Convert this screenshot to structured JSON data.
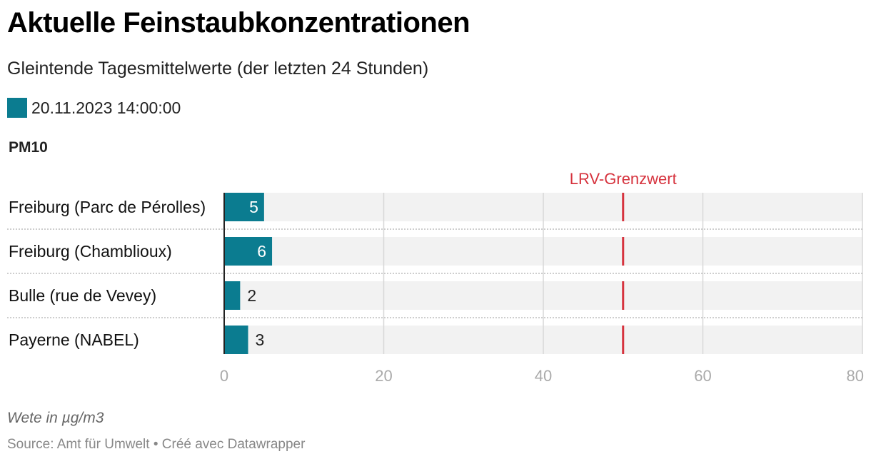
{
  "header": {
    "title": "Aktuelle Feinstaubkonzentrationen",
    "subtitle": "Gleintende Tagesmittelwerte (der letzten 24 Stunden)"
  },
  "legend": {
    "label": "20.11.2023 14:00:00",
    "color": "#0b7c90"
  },
  "panel": {
    "title": "PM10"
  },
  "footer": {
    "note": "Wete in µg/m3",
    "source": "Source: Amt für Umwelt • Créé avec Datawrapper"
  },
  "chart_data": {
    "type": "bar",
    "orientation": "horizontal",
    "title": "PM10",
    "categories": [
      "Freiburg (Parc de Pérolles)",
      "Freiburg (Chamblioux)",
      "Bulle (rue de Vevey)",
      "Payerne (NABEL)"
    ],
    "series": [
      {
        "name": "20.11.2023 14:00:00",
        "values": [
          5,
          6,
          2,
          3
        ],
        "color": "#0b7c90"
      }
    ],
    "xlim": [
      0,
      80
    ],
    "xticks": [
      0,
      20,
      40,
      60,
      80
    ],
    "xlabel": "",
    "ylabel": "",
    "reference_line": {
      "label": "LRV-Grenzwert",
      "value": 50,
      "color": "#d6333e"
    },
    "colors": {
      "bar": "#0b7c90",
      "background": "#f2f2f2",
      "grid": "#d7d7d7",
      "tick": "#aaaaaa",
      "reference": "#d6333e"
    }
  }
}
